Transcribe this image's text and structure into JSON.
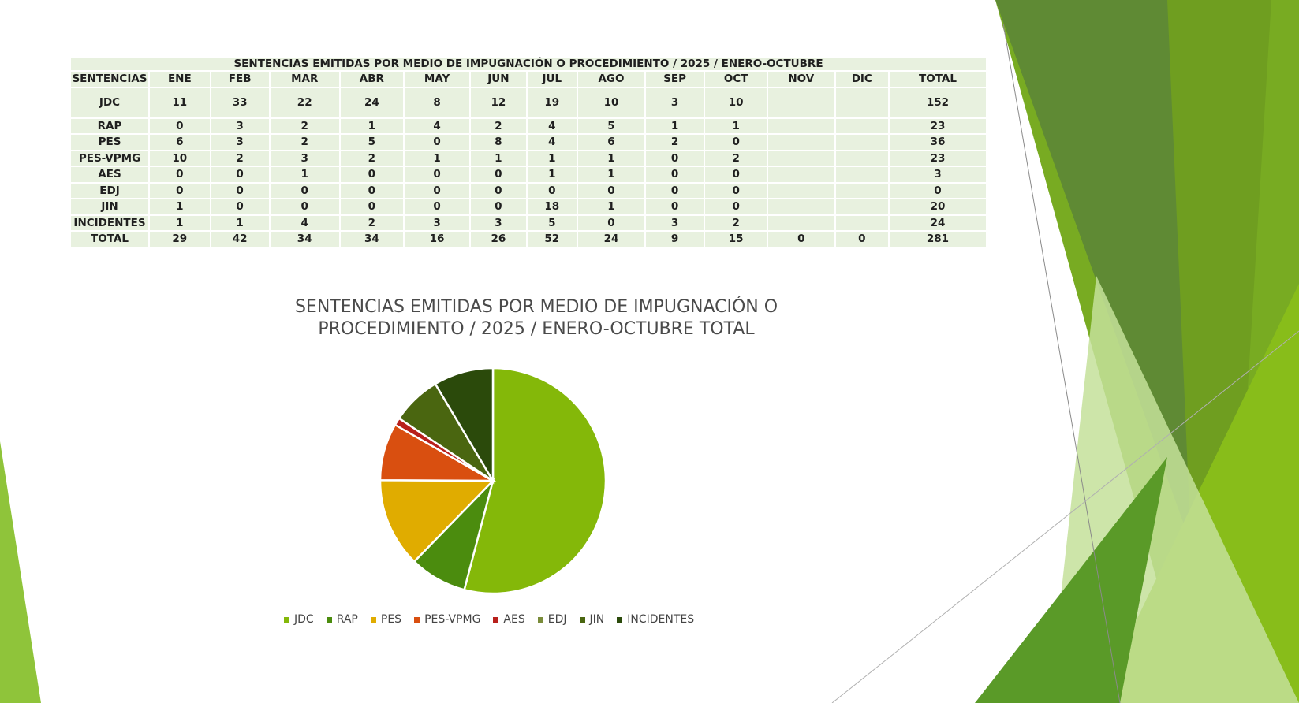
{
  "table": {
    "title": "SENTENCIAS EMITIDAS POR MEDIO DE IMPUGNACIÓN O PROCEDIMIENTO / 2025 /  ENERO-OCTUBRE",
    "headers": [
      "SENTENCIAS",
      "ENE",
      "FEB",
      "MAR",
      "ABR",
      "MAY",
      "JUN",
      "JUL",
      "AGO",
      "SEP",
      "OCT",
      "NOV",
      "DIC",
      "TOTAL"
    ],
    "rows": [
      [
        "JDC",
        "11",
        "33",
        "22",
        "24",
        "8",
        "12",
        "19",
        "10",
        "3",
        "10",
        "",
        "",
        "152"
      ],
      [
        "RAP",
        "0",
        "3",
        "2",
        "1",
        "4",
        "2",
        "4",
        "5",
        "1",
        "1",
        "",
        "",
        "23"
      ],
      [
        "PES",
        "6",
        "3",
        "2",
        "5",
        "0",
        "8",
        "4",
        "6",
        "2",
        "0",
        "",
        "",
        "36"
      ],
      [
        "PES-VPMG",
        "10",
        "2",
        "3",
        "2",
        "1",
        "1",
        "1",
        "1",
        "0",
        "2",
        "",
        "",
        "23"
      ],
      [
        "AES",
        "0",
        "0",
        "1",
        "0",
        "0",
        "0",
        "1",
        "1",
        "0",
        "0",
        "",
        "",
        "3"
      ],
      [
        "EDJ",
        "0",
        "0",
        "0",
        "0",
        "0",
        "0",
        "0",
        "0",
        "0",
        "0",
        "",
        "",
        "0"
      ],
      [
        "JIN",
        "1",
        "0",
        "0",
        "0",
        "0",
        "0",
        "18",
        "1",
        "0",
        "0",
        "",
        "",
        "20"
      ],
      [
        "INCIDENTES",
        "1",
        "1",
        "4",
        "2",
        "3",
        "3",
        "5",
        "0",
        "3",
        "2",
        "",
        "",
        "24"
      ],
      [
        "TOTAL",
        "29",
        "42",
        "34",
        "34",
        "16",
        "26",
        "52",
        "24",
        "9",
        "15",
        "0",
        "0",
        "281"
      ]
    ]
  },
  "chart_data": {
    "type": "pie",
    "title_lines": [
      "SENTENCIAS EMITIDAS POR MEDIO DE IMPUGNACIÓN O",
      "PROCEDIMIENTO / 2025 /  ENERO-OCTUBRE TOTAL"
    ],
    "categories": [
      "JDC",
      "RAP",
      "PES",
      "PES-VPMG",
      "AES",
      "EDJ",
      "JIN",
      "INCIDENTES"
    ],
    "values": [
      152,
      23,
      36,
      23,
      3,
      0,
      20,
      24
    ],
    "colors": [
      "#84b809",
      "#4b8c0e",
      "#e0ac00",
      "#d94f10",
      "#b8201c",
      "#7a8c3a",
      "#4a6610",
      "#2b4a0b"
    ],
    "legend_position": "bottom"
  },
  "colors": {
    "table_cell_bg": "#e8f1df",
    "accent_green": "#84b809"
  }
}
